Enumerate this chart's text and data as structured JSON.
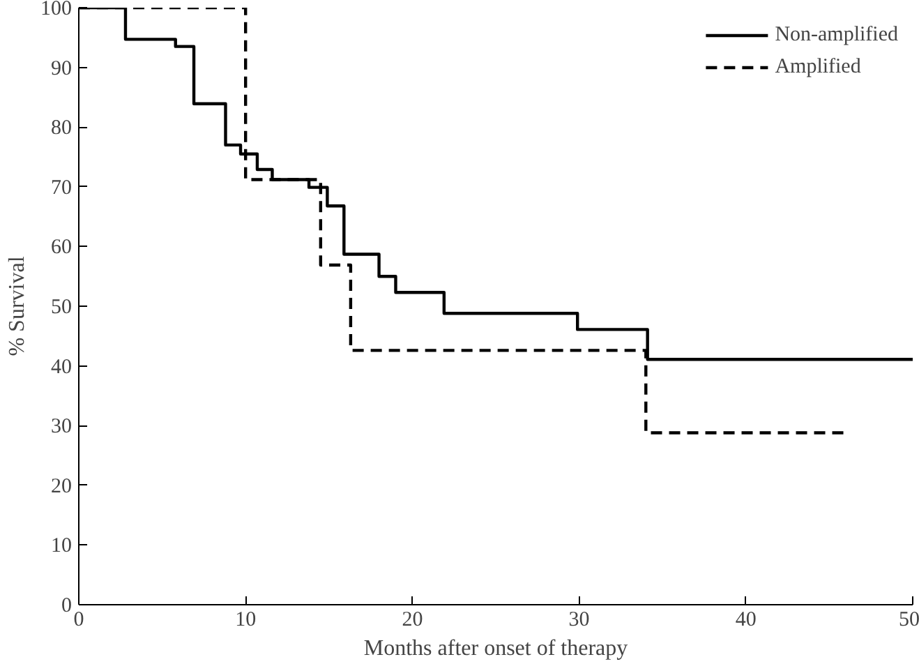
{
  "chart_data": {
    "type": "step",
    "xlabel": "Months after onset of therapy",
    "ylabel": "% Survival",
    "xlim": [
      0,
      50
    ],
    "ylim": [
      0,
      100
    ],
    "xticks": [
      0,
      10,
      20,
      30,
      40,
      50
    ],
    "yticks": [
      0,
      10,
      20,
      30,
      40,
      50,
      60,
      70,
      80,
      90,
      100
    ],
    "grid": false,
    "legend": "top right",
    "series": [
      {
        "name": "Non-amplified",
        "color": "#000000",
        "line_style": "solid",
        "x": [
          0,
          2.8,
          5.8,
          6.9,
          8.8,
          9.7,
          10.7,
          11.6,
          13.8,
          14.9,
          15.9,
          18.0,
          19.0,
          21.9,
          29.9,
          34.1,
          50
        ],
        "values": [
          100,
          94.7,
          93.5,
          83.9,
          77.0,
          75.5,
          72.9,
          71.2,
          69.9,
          66.8,
          58.7,
          55.0,
          52.3,
          48.8,
          46.1,
          41.1,
          41.1
        ]
      },
      {
        "name": "Amplified",
        "color": "#000000",
        "line_style": "dashed",
        "x": [
          0,
          10.0,
          14.5,
          16.3,
          34.0,
          46
        ],
        "values": [
          100,
          71.2,
          56.9,
          42.6,
          28.8,
          28.8
        ]
      }
    ]
  }
}
